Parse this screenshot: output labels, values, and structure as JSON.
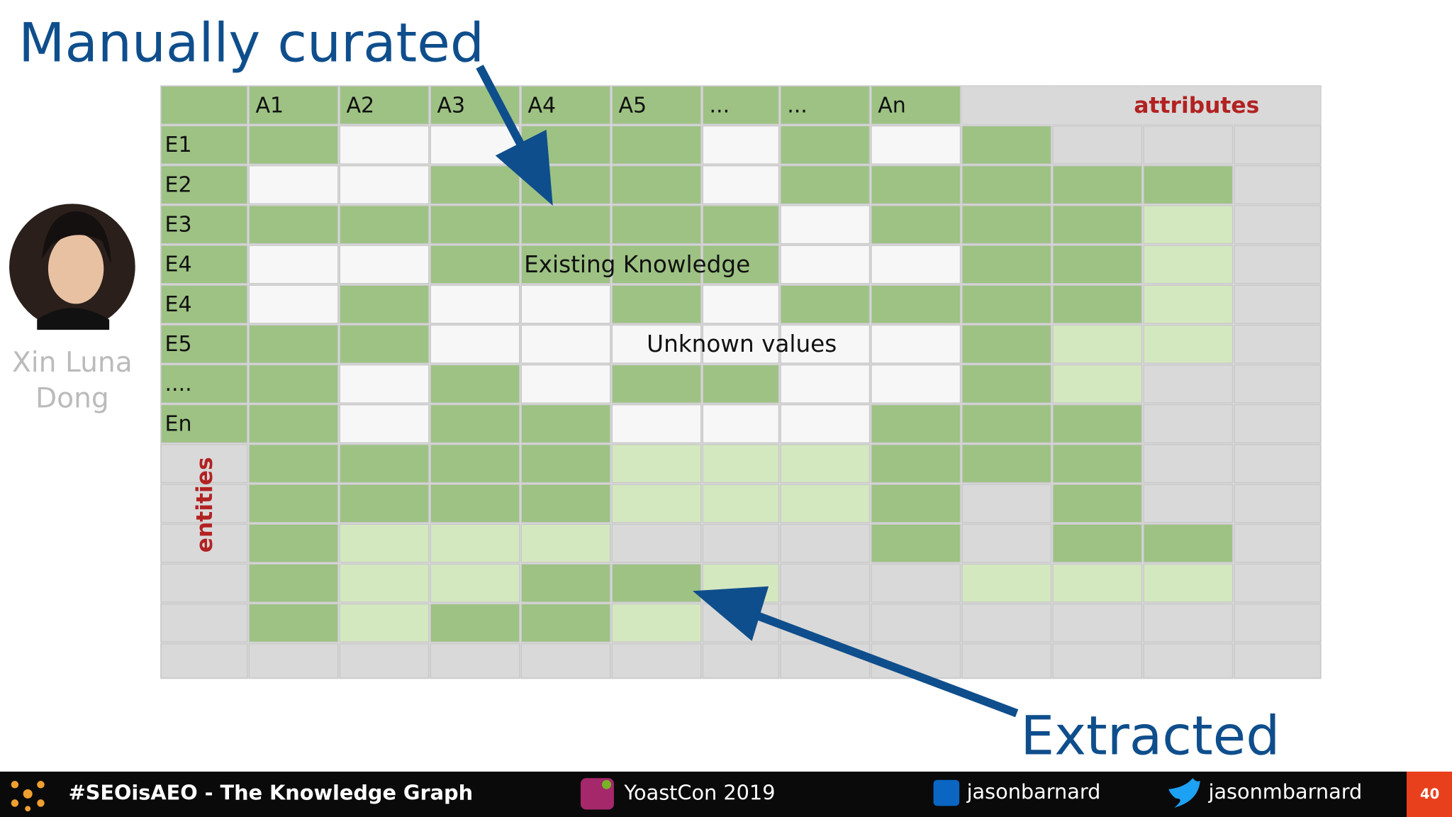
{
  "slide": {
    "title": "Manually curated",
    "caption": "Extracted",
    "speaker": [
      "Xin Luna",
      "Dong"
    ]
  },
  "table": {
    "columns": [
      "A1",
      "A2",
      "A3",
      "A4",
      "A5",
      "...",
      "...",
      "An"
    ],
    "rows": [
      "E1",
      "E2",
      "E3",
      "E4",
      "E4",
      "E5",
      "....",
      "En"
    ],
    "attributes_label": "attributes",
    "entities_label": "entities",
    "annotations": [
      "Existing Knowledge",
      "Unknown values"
    ]
  },
  "footer": {
    "hashtag": "#SEOisAEO - The Knowledge Graph",
    "event": "YoastCon 2019",
    "linkedin": "jasonbarnard",
    "twitter": "jasonmbarnard",
    "page": "40"
  }
}
